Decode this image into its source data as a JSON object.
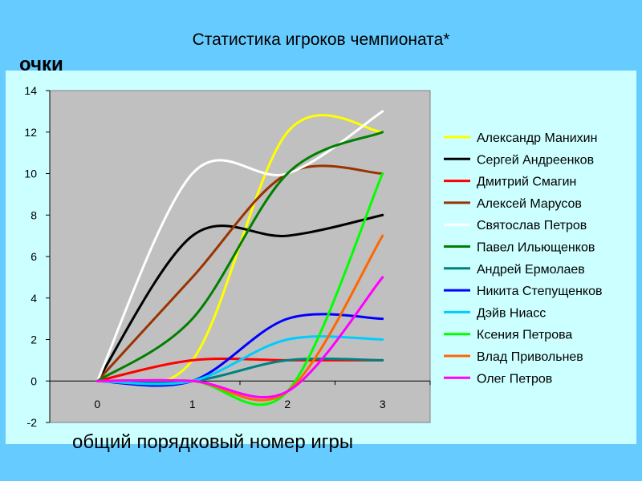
{
  "page": {
    "title": "Статистика игроков чемпионата*"
  },
  "chart_data": {
    "type": "line",
    "title": "Статистика игроков чемпионата*",
    "xlabel": "общий порядковый номер игры",
    "ylabel": "очки",
    "x": [
      0,
      1,
      2,
      3
    ],
    "xlim": [
      -0.5,
      3.5
    ],
    "ylim": [
      -2,
      14
    ],
    "y_ticks": [
      -2,
      0,
      2,
      4,
      6,
      8,
      10,
      12,
      14
    ],
    "x_ticks": [
      0,
      1,
      2,
      3
    ],
    "grid": false,
    "legend_position": "right",
    "plot_background": "#c0c0c0",
    "series": [
      {
        "name": "Александр Манихин",
        "color": "#ffff00",
        "values": [
          0,
          1,
          12,
          12
        ]
      },
      {
        "name": "Сергей Андреенков",
        "color": "#000000",
        "values": [
          0,
          7,
          7,
          8
        ]
      },
      {
        "name": "Дмитрий Смагин",
        "color": "#ff0000",
        "values": [
          0,
          1,
          1,
          1
        ]
      },
      {
        "name": "Алексей Марусов",
        "color": "#993300",
        "values": [
          0,
          5,
          10,
          10
        ]
      },
      {
        "name": "Святослав Петров",
        "color": "#ffffff",
        "values": [
          0,
          10,
          10,
          13
        ]
      },
      {
        "name": "Павел Ильющенков",
        "color": "#008000",
        "values": [
          0,
          3,
          10,
          12
        ]
      },
      {
        "name": "Андрей Ермолаев",
        "color": "#008080",
        "values": [
          0,
          0,
          1,
          1
        ]
      },
      {
        "name": "Никита Степущенков",
        "color": "#0000ff",
        "values": [
          0,
          0,
          3,
          3
        ]
      },
      {
        "name": "Дэйв Ниасс",
        "color": "#00ccff",
        "values": [
          0,
          0,
          2,
          2
        ]
      },
      {
        "name": "Ксения Петрова",
        "color": "#00ff00",
        "values": [
          0,
          0,
          -0.5,
          10
        ]
      },
      {
        "name": "Влад Привольнев",
        "color": "#ff6600",
        "values": [
          0,
          0,
          -0.5,
          7
        ]
      },
      {
        "name": "Олег Петров",
        "color": "#ff00ff",
        "values": [
          0,
          0,
          -0.5,
          5
        ]
      }
    ]
  }
}
